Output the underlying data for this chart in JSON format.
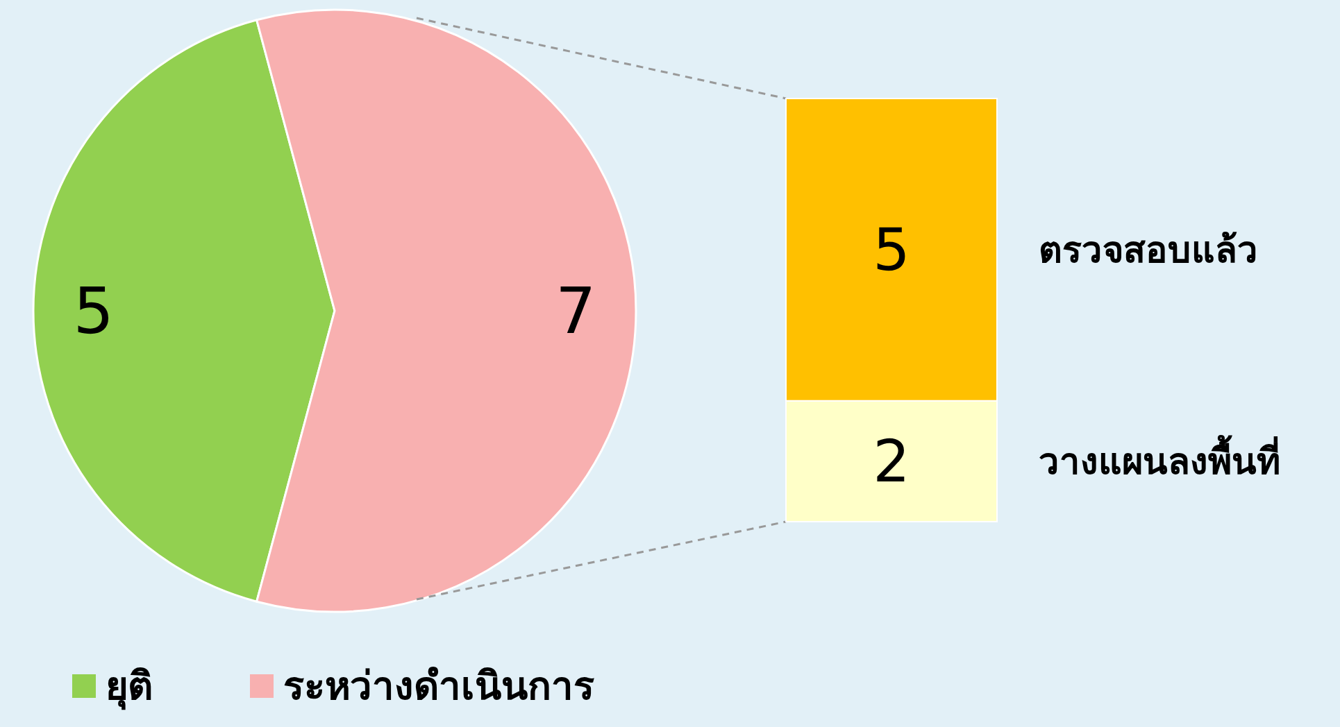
{
  "chart_data": [
    {
      "type": "pie",
      "categories": [
        "ยุติ",
        "ระหว่างดำเนินการ"
      ],
      "values": [
        5,
        7
      ],
      "colors": [
        "#92d050",
        "#f8b0b0"
      ],
      "data_labels": true,
      "legend": "bottom"
    },
    {
      "type": "bar",
      "stacked": true,
      "categories": [
        null
      ],
      "data_labels": true,
      "series": [
        {
          "name": "วางแผนลงพื้นที่",
          "color": "#ffffc8",
          "values": [
            2
          ]
        },
        {
          "name": "ตรวจสอบแล้ว",
          "color": "#ffc000",
          "values": [
            5
          ]
        }
      ]
    }
  ]
}
